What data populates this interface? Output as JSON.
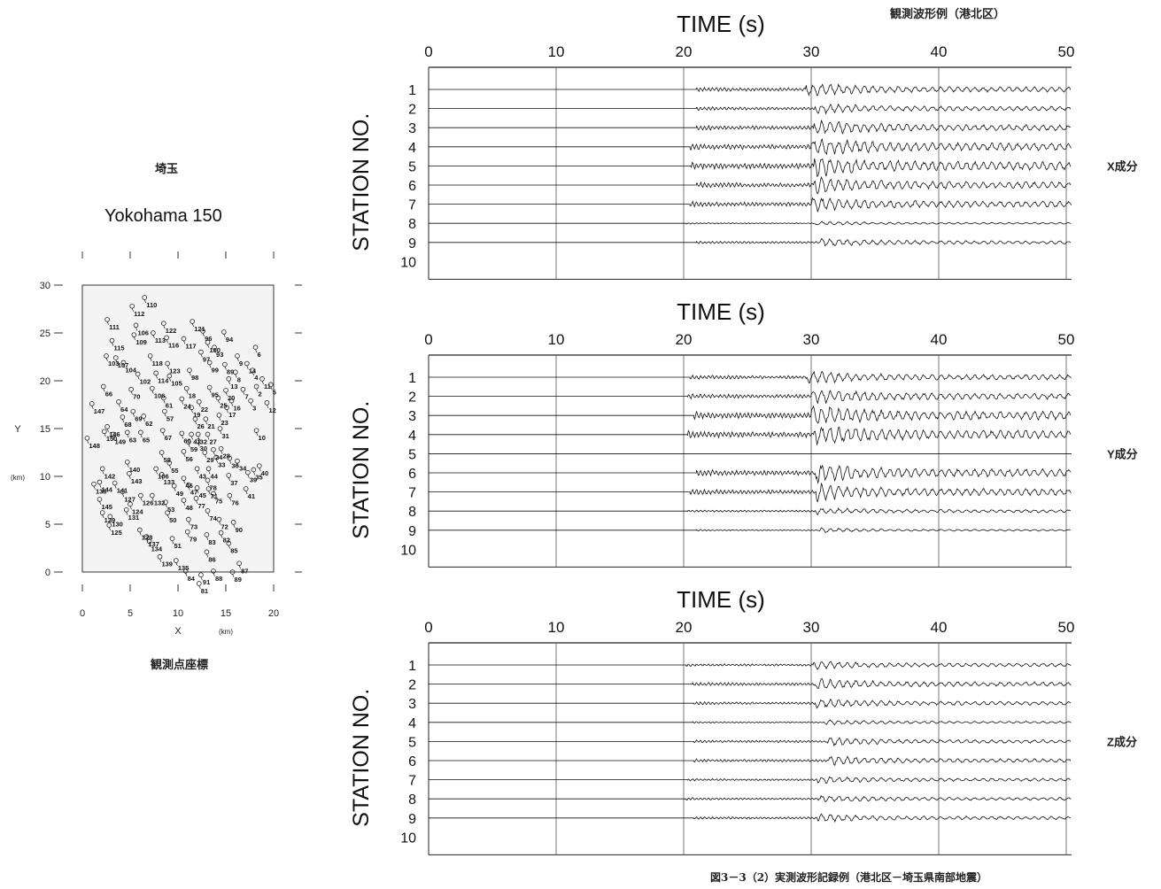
{
  "header": {
    "top_right_title": "観測波形例（港北区）",
    "caption": "図3－3（2）実測波形記録例（港北区－埼玉県南部地震）"
  },
  "map": {
    "region_label": "埼玉",
    "title": "Yokohama 150",
    "caption": "観測点座標",
    "xlabel": "X",
    "xunit": "(km)",
    "ylabel": "Y",
    "yunit": "(km)",
    "x_ticks": [
      0,
      5,
      10,
      15,
      20
    ],
    "y_ticks": [
      0,
      5,
      10,
      15,
      20,
      25,
      30
    ],
    "xlim": [
      0,
      20
    ],
    "ylim": [
      0,
      30
    ]
  },
  "chart_data": [
    {
      "type": "scatter",
      "title": "Yokohama 150",
      "xlabel": "X (km)",
      "ylabel": "Y (km)",
      "xlim": [
        0,
        20
      ],
      "ylim": [
        0,
        30
      ],
      "points": [
        {
          "id": "110",
          "x": 6.5,
          "y": 28.7
        },
        {
          "id": "112",
          "x": 5.2,
          "y": 27.8
        },
        {
          "id": "111",
          "x": 2.6,
          "y": 26.4
        },
        {
          "id": "106",
          "x": 5.6,
          "y": 25.8
        },
        {
          "id": "122",
          "x": 8.5,
          "y": 26.0
        },
        {
          "id": "121",
          "x": 11.5,
          "y": 26.2
        },
        {
          "id": "96",
          "x": 12.6,
          "y": 25.2
        },
        {
          "id": "94",
          "x": 14.8,
          "y": 25.1
        },
        {
          "id": "109",
          "x": 5.4,
          "y": 24.8
        },
        {
          "id": "113",
          "x": 7.4,
          "y": 25.0
        },
        {
          "id": "116",
          "x": 8.8,
          "y": 24.5
        },
        {
          "id": "117",
          "x": 10.6,
          "y": 24.4
        },
        {
          "id": "115",
          "x": 3.1,
          "y": 24.2
        },
        {
          "id": "100",
          "x": 13.1,
          "y": 24.0
        },
        {
          "id": "93",
          "x": 13.8,
          "y": 23.5
        },
        {
          "id": "6",
          "x": 18.1,
          "y": 23.5
        },
        {
          "id": "103",
          "x": 2.5,
          "y": 22.6
        },
        {
          "id": "107",
          "x": 3.5,
          "y": 22.4
        },
        {
          "id": "104",
          "x": 4.3,
          "y": 21.9
        },
        {
          "id": "118",
          "x": 7.1,
          "y": 22.6
        },
        {
          "id": "97",
          "x": 12.4,
          "y": 23.0
        },
        {
          "id": "9",
          "x": 16.2,
          "y": 22.6
        },
        {
          "id": "99",
          "x": 13.3,
          "y": 21.9
        },
        {
          "id": "123",
          "x": 8.9,
          "y": 21.8
        },
        {
          "id": "89",
          "x": 14.9,
          "y": 21.7
        },
        {
          "id": "14",
          "x": 17.2,
          "y": 21.8
        },
        {
          "id": "4",
          "x": 17.8,
          "y": 21.1
        },
        {
          "id": "102",
          "x": 5.8,
          "y": 20.7
        },
        {
          "id": "114",
          "x": 7.7,
          "y": 20.8
        },
        {
          "id": "105",
          "x": 9.1,
          "y": 20.5
        },
        {
          "id": "98",
          "x": 11.2,
          "y": 21.1
        },
        {
          "id": "8",
          "x": 16.0,
          "y": 20.9
        },
        {
          "id": "13",
          "x": 15.3,
          "y": 20.2
        },
        {
          "id": "11",
          "x": 18.8,
          "y": 20.2
        },
        {
          "id": "5",
          "x": 19.7,
          "y": 19.6
        },
        {
          "id": "66",
          "x": 2.2,
          "y": 19.4
        },
        {
          "id": "70",
          "x": 5.1,
          "y": 19.1
        },
        {
          "id": "106b",
          "x": 7.3,
          "y": 19.2
        },
        {
          "id": "18",
          "x": 10.9,
          "y": 19.2
        },
        {
          "id": "95",
          "x": 13.3,
          "y": 19.3
        },
        {
          "id": "20",
          "x": 15.0,
          "y": 19.0
        },
        {
          "id": "7",
          "x": 16.8,
          "y": 19.1
        },
        {
          "id": "2",
          "x": 18.2,
          "y": 19.4
        },
        {
          "id": "61",
          "x": 8.5,
          "y": 18.2
        },
        {
          "id": "24",
          "x": 10.4,
          "y": 18.1
        },
        {
          "id": "22",
          "x": 12.2,
          "y": 17.8
        },
        {
          "id": "25",
          "x": 14.2,
          "y": 18.2
        },
        {
          "id": "16",
          "x": 15.6,
          "y": 17.9
        },
        {
          "id": "3",
          "x": 17.6,
          "y": 17.9
        },
        {
          "id": "12",
          "x": 19.3,
          "y": 17.7
        },
        {
          "id": "147",
          "x": 1.0,
          "y": 17.6
        },
        {
          "id": "64",
          "x": 3.8,
          "y": 17.8
        },
        {
          "id": "69",
          "x": 5.3,
          "y": 16.8
        },
        {
          "id": "57",
          "x": 8.6,
          "y": 16.8
        },
        {
          "id": "19",
          "x": 11.4,
          "y": 17.2
        },
        {
          "id": "17",
          "x": 15.1,
          "y": 17.2
        },
        {
          "id": "68",
          "x": 4.2,
          "y": 16.2
        },
        {
          "id": "62",
          "x": 6.4,
          "y": 16.3
        },
        {
          "id": "26",
          "x": 11.8,
          "y": 16.0
        },
        {
          "id": "21",
          "x": 12.9,
          "y": 16.0
        },
        {
          "id": "23",
          "x": 14.3,
          "y": 16.4
        },
        {
          "id": "146",
          "x": 2.6,
          "y": 15.2
        },
        {
          "id": "150",
          "x": 2.3,
          "y": 14.7
        },
        {
          "id": "149",
          "x": 3.2,
          "y": 14.4
        },
        {
          "id": "63",
          "x": 4.7,
          "y": 14.6
        },
        {
          "id": "65",
          "x": 6.1,
          "y": 14.6
        },
        {
          "id": "67",
          "x": 8.4,
          "y": 14.8
        },
        {
          "id": "60",
          "x": 10.4,
          "y": 14.5
        },
        {
          "id": "41",
          "x": 11.4,
          "y": 14.4
        },
        {
          "id": "32",
          "x": 12.1,
          "y": 14.4
        },
        {
          "id": "27",
          "x": 13.1,
          "y": 14.4
        },
        {
          "id": "31",
          "x": 14.4,
          "y": 15.0
        },
        {
          "id": "10",
          "x": 18.2,
          "y": 14.8
        },
        {
          "id": "148",
          "x": 0.5,
          "y": 14.0
        },
        {
          "id": "59",
          "x": 11.1,
          "y": 13.6
        },
        {
          "id": "30",
          "x": 12.1,
          "y": 13.7
        },
        {
          "id": "58",
          "x": 8.3,
          "y": 12.5
        },
        {
          "id": "56",
          "x": 10.6,
          "y": 12.6
        },
        {
          "id": "29",
          "x": 12.8,
          "y": 12.5
        },
        {
          "id": "28",
          "x": 14.5,
          "y": 12.9
        },
        {
          "id": "24b",
          "x": 13.7,
          "y": 12.8
        },
        {
          "id": "140",
          "x": 4.7,
          "y": 11.5
        },
        {
          "id": "55",
          "x": 9.1,
          "y": 11.4
        },
        {
          "id": "33",
          "x": 14.0,
          "y": 12.0
        },
        {
          "id": "36",
          "x": 15.4,
          "y": 11.9
        },
        {
          "id": "34",
          "x": 16.2,
          "y": 11.6
        },
        {
          "id": "40",
          "x": 18.5,
          "y": 11.1
        },
        {
          "id": "142",
          "x": 2.1,
          "y": 10.8
        },
        {
          "id": "106c",
          "x": 7.7,
          "y": 10.8
        },
        {
          "id": "43",
          "x": 12.0,
          "y": 10.8
        },
        {
          "id": "44",
          "x": 13.2,
          "y": 10.8
        },
        {
          "id": "39",
          "x": 17.3,
          "y": 10.4
        },
        {
          "id": "35",
          "x": 17.9,
          "y": 10.7
        },
        {
          "id": "143",
          "x": 4.9,
          "y": 10.3
        },
        {
          "id": "133",
          "x": 8.3,
          "y": 10.2
        },
        {
          "id": "46",
          "x": 10.6,
          "y": 9.8
        },
        {
          "id": "37",
          "x": 15.3,
          "y": 10.1
        },
        {
          "id": "78",
          "x": 13.1,
          "y": 9.6
        },
        {
          "id": "138",
          "x": 1.2,
          "y": 9.2
        },
        {
          "id": "144",
          "x": 1.8,
          "y": 9.4
        },
        {
          "id": "141",
          "x": 3.4,
          "y": 9.3
        },
        {
          "id": "49",
          "x": 9.6,
          "y": 9.0
        },
        {
          "id": "47",
          "x": 11.1,
          "y": 9.1
        },
        {
          "id": "45",
          "x": 12.0,
          "y": 8.8
        },
        {
          "id": "71",
          "x": 13.2,
          "y": 8.7
        },
        {
          "id": "41b",
          "x": 17.1,
          "y": 8.7
        },
        {
          "id": "127",
          "x": 4.2,
          "y": 8.4
        },
        {
          "id": "126",
          "x": 6.1,
          "y": 8.0
        },
        {
          "id": "132",
          "x": 7.3,
          "y": 8.0
        },
        {
          "id": "75",
          "x": 13.7,
          "y": 8.2
        },
        {
          "id": "76",
          "x": 15.4,
          "y": 8.0
        },
        {
          "id": "145",
          "x": 1.8,
          "y": 7.6
        },
        {
          "id": "124",
          "x": 5.0,
          "y": 7.1
        },
        {
          "id": "53",
          "x": 8.7,
          "y": 7.3
        },
        {
          "id": "48",
          "x": 10.6,
          "y": 7.5
        },
        {
          "id": "77",
          "x": 11.9,
          "y": 7.7
        },
        {
          "id": "131",
          "x": 4.6,
          "y": 6.5
        },
        {
          "id": "50",
          "x": 8.9,
          "y": 6.2
        },
        {
          "id": "74",
          "x": 13.1,
          "y": 6.4
        },
        {
          "id": "129",
          "x": 2.1,
          "y": 6.2
        },
        {
          "id": "130",
          "x": 2.9,
          "y": 5.8
        },
        {
          "id": "73",
          "x": 11.1,
          "y": 5.5
        },
        {
          "id": "72",
          "x": 14.3,
          "y": 5.5
        },
        {
          "id": "90",
          "x": 15.8,
          "y": 5.2
        },
        {
          "id": "125",
          "x": 2.8,
          "y": 4.9
        },
        {
          "id": "128",
          "x": 6.0,
          "y": 4.4
        },
        {
          "id": "79",
          "x": 11.0,
          "y": 4.2
        },
        {
          "id": "83",
          "x": 13.0,
          "y": 3.9
        },
        {
          "id": "82",
          "x": 14.5,
          "y": 4.1
        },
        {
          "id": "137",
          "x": 6.7,
          "y": 3.7
        },
        {
          "id": "134",
          "x": 7.0,
          "y": 3.2
        },
        {
          "id": "51",
          "x": 9.4,
          "y": 3.5
        },
        {
          "id": "85",
          "x": 15.3,
          "y": 3.0
        },
        {
          "id": "86",
          "x": 13.0,
          "y": 2.1
        },
        {
          "id": "139",
          "x": 8.1,
          "y": 1.6
        },
        {
          "id": "135",
          "x": 9.8,
          "y": 1.2
        },
        {
          "id": "87",
          "x": 16.4,
          "y": 0.9
        },
        {
          "id": "84",
          "x": 10.8,
          "y": 0.1
        },
        {
          "id": "88",
          "x": 13.7,
          "y": 0.1
        },
        {
          "id": "89b",
          "x": 15.7,
          "y": 0.0
        },
        {
          "id": "91",
          "x": 12.4,
          "y": -0.3
        },
        {
          "id": "81",
          "x": 12.2,
          "y": -1.2
        }
      ]
    },
    {
      "type": "line",
      "title": "TIME (s)",
      "xlabel": "TIME (s)",
      "ylabel": "STATION NO.",
      "xlim": [
        0,
        50
      ],
      "x_ticks": [
        0,
        10,
        20,
        30,
        40,
        50
      ],
      "y_ticks": [
        1,
        2,
        3,
        4,
        5,
        6,
        7,
        8,
        9,
        10
      ],
      "grid": true,
      "component_label": "X成分",
      "traces": [
        {
          "station": 1,
          "onset": 21.0,
          "s_arrival": 29.6,
          "amplitude": 0.6
        },
        {
          "station": 2,
          "onset": 21.0,
          "s_arrival": 30.3,
          "amplitude": 0.5
        },
        {
          "station": 3,
          "onset": 21.0,
          "s_arrival": 30.2,
          "amplitude": 0.7
        },
        {
          "station": 4,
          "onset": 20.5,
          "s_arrival": 30.0,
          "amplitude": 0.9
        },
        {
          "station": 5,
          "onset": 20.6,
          "s_arrival": 30.2,
          "amplitude": 1.0
        },
        {
          "station": 6,
          "onset": 21.0,
          "s_arrival": 30.2,
          "amplitude": 0.8
        },
        {
          "station": 7,
          "onset": 20.5,
          "s_arrival": 30.0,
          "amplitude": 0.7
        },
        {
          "station": 8,
          "onset": 20.2,
          "s_arrival": 30.3,
          "amplitude": 0.15
        },
        {
          "station": 9,
          "onset": 21.0,
          "s_arrival": 30.6,
          "amplitude": 0.35
        },
        {
          "station": 10,
          "onset": null,
          "s_arrival": null,
          "amplitude": 0
        }
      ]
    },
    {
      "type": "line",
      "title": "TIME (s)",
      "xlabel": "TIME (s)",
      "ylabel": "STATION NO.",
      "xlim": [
        0,
        50
      ],
      "x_ticks": [
        0,
        10,
        20,
        30,
        40,
        50
      ],
      "y_ticks": [
        1,
        2,
        3,
        4,
        5,
        6,
        7,
        8,
        9,
        10
      ],
      "grid": true,
      "component_label": "Y成分",
      "traces": [
        {
          "station": 1,
          "onset": 20.5,
          "s_arrival": 29.7,
          "amplitude": 0.6
        },
        {
          "station": 2,
          "onset": 20.3,
          "s_arrival": 30.0,
          "amplitude": 0.7
        },
        {
          "station": 3,
          "onset": 20.8,
          "s_arrival": 30.0,
          "amplitude": 1.0
        },
        {
          "station": 4,
          "onset": 20.3,
          "s_arrival": 30.2,
          "amplitude": 1.0
        },
        {
          "station": 5,
          "onset": null,
          "s_arrival": null,
          "amplitude": 0
        },
        {
          "station": 6,
          "onset": 21.0,
          "s_arrival": 30.3,
          "amplitude": 0.9
        },
        {
          "station": 7,
          "onset": 20.5,
          "s_arrival": 30.3,
          "amplitude": 0.8
        },
        {
          "station": 8,
          "onset": 20.3,
          "s_arrival": 30.3,
          "amplitude": 0.3
        },
        {
          "station": 9,
          "onset": 21.0,
          "s_arrival": 30.6,
          "amplitude": 0.15
        },
        {
          "station": 10,
          "onset": null,
          "s_arrival": null,
          "amplitude": 0
        }
      ]
    },
    {
      "type": "line",
      "title": "TIME (s)",
      "xlabel": "TIME (s)",
      "ylabel": "STATION NO.",
      "xlim": [
        0,
        50
      ],
      "x_ticks": [
        0,
        10,
        20,
        30,
        40,
        50
      ],
      "y_ticks": [
        1,
        2,
        3,
        4,
        5,
        6,
        7,
        8,
        9,
        10
      ],
      "grid": true,
      "component_label": "Z成分",
      "traces": [
        {
          "station": 1,
          "onset": 20.2,
          "s_arrival": 30.2,
          "amplitude": 0.35
        },
        {
          "station": 2,
          "onset": 20.7,
          "s_arrival": 30.3,
          "amplitude": 0.5
        },
        {
          "station": 3,
          "onset": 20.8,
          "s_arrival": 30.3,
          "amplitude": 0.4
        },
        {
          "station": 4,
          "onset": 20.7,
          "s_arrival": 31.0,
          "amplitude": 0.2
        },
        {
          "station": 5,
          "onset": 20.8,
          "s_arrival": 31.3,
          "amplitude": 0.35
        },
        {
          "station": 6,
          "onset": 20.8,
          "s_arrival": 31.4,
          "amplitude": 0.4
        },
        {
          "station": 7,
          "onset": 20.3,
          "s_arrival": 30.5,
          "amplitude": 0.3
        },
        {
          "station": 8,
          "onset": 20.2,
          "s_arrival": 30.5,
          "amplitude": 0.3
        },
        {
          "station": 9,
          "onset": 20.8,
          "s_arrival": 30.5,
          "amplitude": 0.35
        },
        {
          "station": 10,
          "onset": null,
          "s_arrival": null,
          "amplitude": 0
        }
      ]
    }
  ]
}
